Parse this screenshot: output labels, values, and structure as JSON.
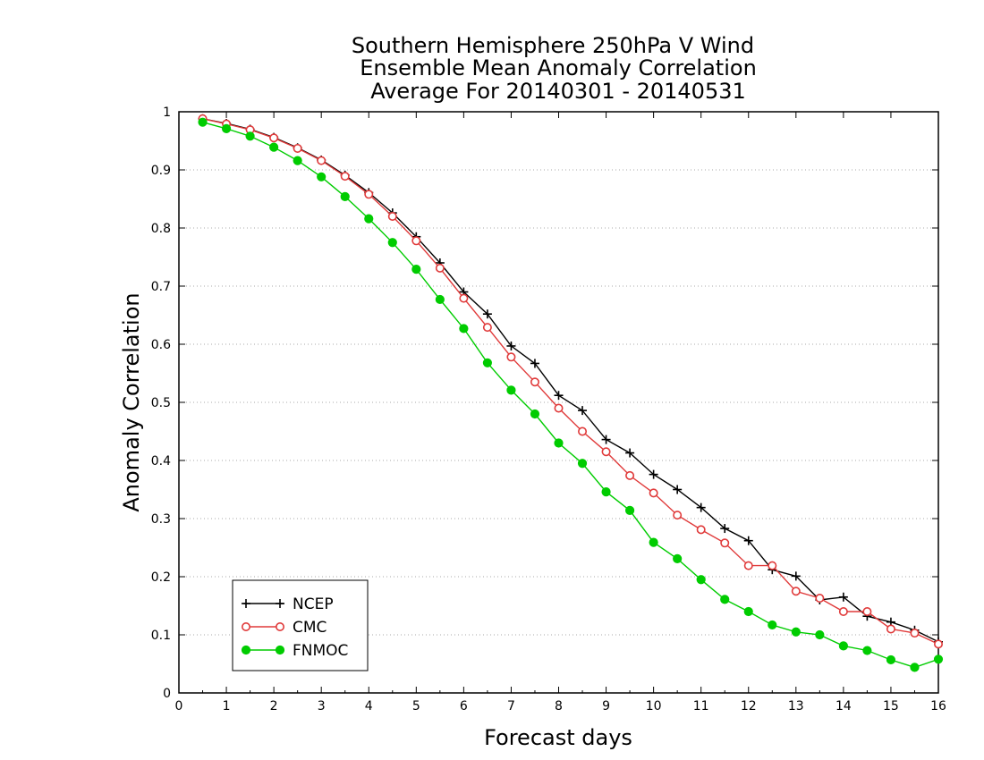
{
  "chart_data": {
    "type": "line",
    "title_lines": [
      "Southern Hemisphere 250hPa V Wind",
      "Ensemble Mean Anomaly Correlation",
      "Average For 20140301 - 20140531"
    ],
    "xlabel": "Forecast days",
    "ylabel": "Anomaly Correlation",
    "xlim": [
      0,
      16
    ],
    "ylim": [
      0,
      1
    ],
    "xticks": [
      0,
      1,
      2,
      3,
      4,
      5,
      6,
      7,
      8,
      9,
      10,
      11,
      12,
      13,
      14,
      15,
      16
    ],
    "yticks": [
      0,
      0.1,
      0.2,
      0.3,
      0.4,
      0.5,
      0.6,
      0.7,
      0.8,
      0.9,
      1
    ],
    "ytick_labels": [
      "0",
      "0.1",
      "0.2",
      "0.3",
      "0.4",
      "0.5",
      "0.6",
      "0.7",
      "0.8",
      "0.9",
      "1"
    ],
    "grid": "horizontal dotted",
    "legend_placement": "bottom-left",
    "x": [
      0.5,
      1,
      1.5,
      2,
      2.5,
      3,
      3.5,
      4,
      4.5,
      5,
      5.5,
      6,
      6.5,
      7,
      7.5,
      8,
      8.5,
      9,
      9.5,
      10,
      10.5,
      11,
      11.5,
      12,
      12.5,
      13,
      13.5,
      14,
      14.5,
      15,
      15.5,
      16
    ],
    "series": [
      {
        "name": "NCEP",
        "marker": "plus",
        "color": "#000000",
        "values": [
          0.988,
          0.98,
          0.97,
          0.956,
          0.938,
          0.917,
          0.891,
          0.861,
          0.826,
          0.785,
          0.74,
          0.69,
          0.652,
          0.597,
          0.567,
          0.512,
          0.486,
          0.436,
          0.413,
          0.376,
          0.35,
          0.319,
          0.283,
          0.262,
          0.212,
          0.201,
          0.16,
          0.165,
          0.132,
          0.122,
          0.108,
          0.088
        ]
      },
      {
        "name": "CMC",
        "marker": "open-circle",
        "color": "#e03a3a",
        "values": [
          0.988,
          0.979,
          0.969,
          0.955,
          0.937,
          0.916,
          0.889,
          0.858,
          0.82,
          0.778,
          0.731,
          0.679,
          0.629,
          0.578,
          0.535,
          0.49,
          0.45,
          0.415,
          0.374,
          0.344,
          0.306,
          0.281,
          0.258,
          0.219,
          0.219,
          0.175,
          0.163,
          0.14,
          0.14,
          0.11,
          0.103,
          0.084
        ]
      },
      {
        "name": "FNMOC",
        "marker": "filled-circle",
        "color": "#00cc00",
        "values": [
          0.982,
          0.971,
          0.958,
          0.939,
          0.916,
          0.888,
          0.854,
          0.816,
          0.775,
          0.729,
          0.677,
          0.627,
          0.568,
          0.521,
          0.48,
          0.43,
          0.395,
          0.346,
          0.314,
          0.259,
          0.231,
          0.195,
          0.161,
          0.14,
          0.117,
          0.105,
          0.1,
          0.081,
          0.073,
          0.057,
          0.044,
          0.058
        ]
      }
    ]
  }
}
